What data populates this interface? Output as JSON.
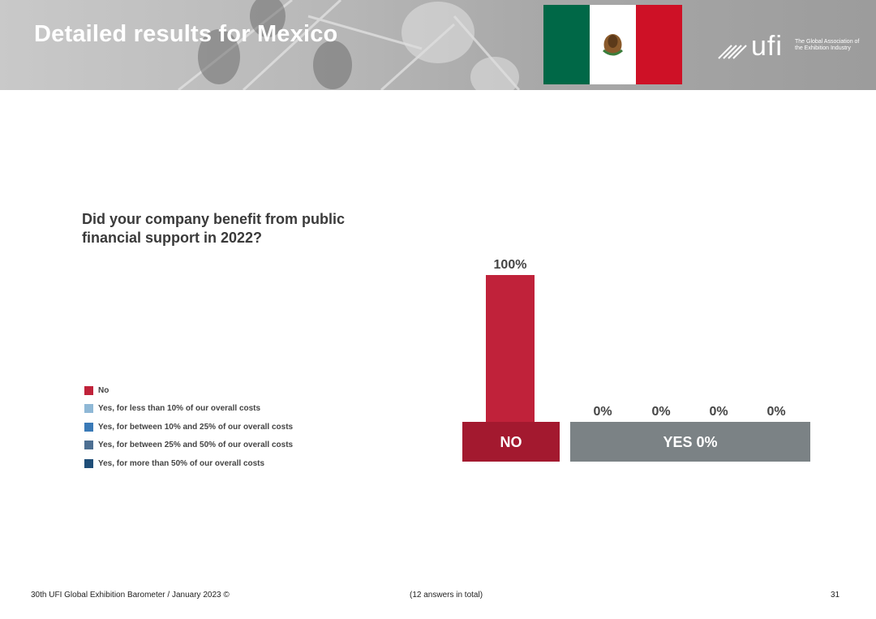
{
  "header": {
    "title": "Detailed results for Mexico",
    "logo_word": "ufi",
    "logo_tagline": "The Global Association of the Exhibition Industry"
  },
  "question": "Did your company benefit from public financial support in 2022?",
  "legend": [
    {
      "label": "No",
      "color": "#c0223a"
    },
    {
      "label": "Yes, for less than 10% of our overall costs",
      "color": "#8fb8d6"
    },
    {
      "label": "Yes, for between 10% and 25% of our overall costs",
      "color": "#3a7ab7"
    },
    {
      "label": "Yes, for between 25% and 50% of our overall costs",
      "color": "#4d6f92"
    },
    {
      "label": "Yes, for more than 50% of our overall costs",
      "color": "#1f4e78"
    }
  ],
  "chart_data": {
    "type": "bar",
    "categories": [
      "No",
      "Yes, for less than 10% of our overall costs",
      "Yes, for between 10% and 25% of our overall costs",
      "Yes, for between 25% and 50% of our overall costs",
      "Yes, for more than 50% of our overall costs"
    ],
    "values": [
      100,
      0,
      0,
      0,
      0
    ],
    "value_labels": [
      "100%",
      "0%",
      "0%",
      "0%",
      "0%"
    ],
    "ylim": [
      0,
      100
    ],
    "group_labels": [
      {
        "label": "NO",
        "color": "#a3192f"
      },
      {
        "label": "YES 0%",
        "color": "#7b8285"
      }
    ],
    "colors": [
      "#c0223a",
      "#8fb8d6",
      "#3a7ab7",
      "#4d6f92",
      "#1f4e78"
    ]
  },
  "footer": {
    "source": "30th UFI Global Exhibition Barometer / January 2023 ©",
    "answers": "(12 answers in total)",
    "page": "31"
  }
}
